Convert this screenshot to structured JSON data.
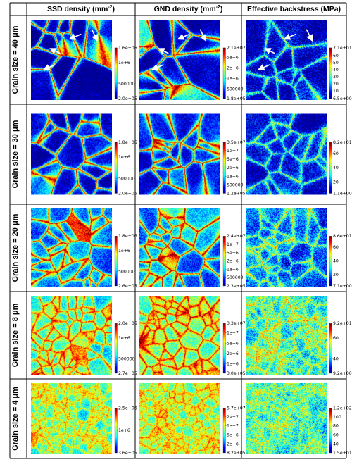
{
  "columns": [
    {
      "title": "SSD density (mm",
      "superscript": "-2",
      "suffix": ")"
    },
    {
      "title": "GND density (mm",
      "superscript": "-2",
      "suffix": ")"
    },
    {
      "title": "Effective backstress (MPa)",
      "superscript": "",
      "suffix": ""
    }
  ],
  "rows": [
    {
      "label": "Grain size = 40 μm",
      "arrows": true,
      "panels": [
        {
          "colorbar": {
            "max": "1.6e+06",
            "ticks": [
              "1e+6",
              "500000"
            ],
            "min": "2.0e+05"
          }
        },
        {
          "colorbar": {
            "max": "2.1e+07",
            "ticks": [
              "5e+6",
              "2e+6",
              "1e+6",
              "500000"
            ],
            "min": "1.8e+05"
          }
        },
        {
          "colorbar": {
            "max": "7.1e+01",
            "ticks": [
              "60",
              "50",
              "40",
              "30",
              "20",
              "10"
            ],
            "min": "6.5e+00"
          }
        }
      ]
    },
    {
      "label": "Grain size = 30 μm",
      "arrows": false,
      "panels": [
        {
          "colorbar": {
            "max": "1.8e+06",
            "ticks": [
              "1e+6",
              "500000"
            ],
            "min": "2.0e+05"
          }
        },
        {
          "colorbar": {
            "max": "3.5e+07",
            "ticks": [
              "1e+7",
              "5e+6",
              "2e+6",
              "1e+6",
              "500000"
            ],
            "min": "1.2e+05"
          }
        },
        {
          "colorbar": {
            "max": "8.2e+01",
            "ticks": [
              "60",
              "40",
              "20"
            ],
            "min": "1.1e+00"
          }
        }
      ]
    },
    {
      "label": "Grain size = 20 μm",
      "arrows": false,
      "panels": [
        {
          "colorbar": {
            "max": "1.8e+06",
            "ticks": [
              "1e+6",
              "500000"
            ],
            "min": "2.6e+05"
          }
        },
        {
          "colorbar": {
            "max": "2.4e+07",
            "ticks": [
              "1e+7",
              "5e+6",
              "2e+6",
              "1e+6",
              "500000"
            ],
            "min": "2.3e+05"
          }
        },
        {
          "colorbar": {
            "max": "8.6e+01",
            "ticks": [
              "60",
              "40",
              "20"
            ],
            "min": "7.1e+00"
          }
        }
      ]
    },
    {
      "label": "Grain size = 8 μm",
      "arrows": false,
      "panels": [
        {
          "colorbar": {
            "max": "2.0e+06",
            "ticks": [
              "1e+6",
              "500000"
            ],
            "min": "2.7e+05"
          }
        },
        {
          "colorbar": {
            "max": "3.3e+07",
            "ticks": [
              "1e+7",
              "5e+6",
              "2e+6",
              "1e+6"
            ],
            "min": "3.0e+05"
          }
        },
        {
          "colorbar": {
            "max": "9.2e+01",
            "ticks": [
              "60",
              "40"
            ],
            "min": "9.2e+00"
          }
        }
      ]
    },
    {
      "label": "Grain size = 4 μm",
      "arrows": false,
      "panels": [
        {
          "colorbar": {
            "max": "2.5e+06",
            "ticks": [
              "1e+6"
            ],
            "min": "3.6e+05"
          }
        },
        {
          "colorbar": {
            "max": "5.7e+07",
            "ticks": [
              "2e+7",
              "1e+7",
              "5e+6",
              "2e+6"
            ],
            "min": "8.2e+05"
          }
        },
        {
          "colorbar": {
            "max": "1.2e+02",
            "ticks": [
              "100",
              "80",
              "60",
              "40"
            ],
            "min": "1.5e+01"
          }
        }
      ]
    }
  ],
  "colors": {
    "jet": [
      "#00008f",
      "#0000ff",
      "#0080ff",
      "#00ffff",
      "#80ff80",
      "#ffff00",
      "#ff8000",
      "#ff0000",
      "#800000"
    ],
    "arrow": "#ffffff",
    "border": "#000000"
  }
}
